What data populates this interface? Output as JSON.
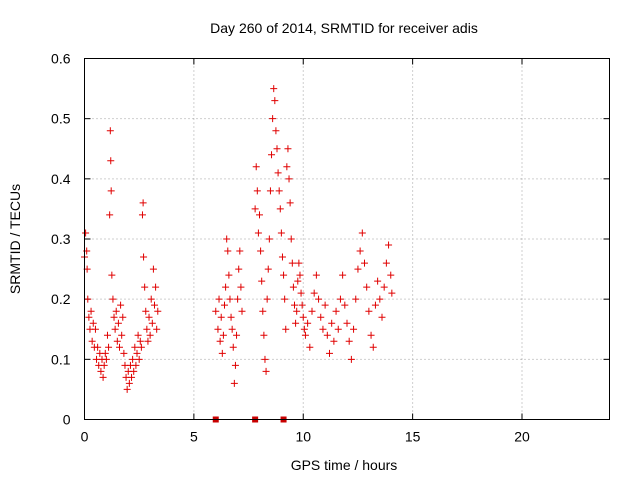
{
  "chart_data": {
    "type": "scatter",
    "title": "Day 260 of 2014, SRMTID for receiver adis",
    "xlabel": "GPS time / hours",
    "ylabel": "SRMTID / TECUs",
    "xlim": [
      0,
      24
    ],
    "ylim": [
      0,
      0.6
    ],
    "xticks": [
      0,
      5,
      10,
      15,
      20
    ],
    "yticks": [
      0,
      0.1,
      0.2,
      0.3,
      0.4,
      0.5,
      0.6
    ],
    "xtick_labels": [
      "0",
      "5",
      "10",
      "15",
      "20"
    ],
    "ytick_labels": [
      "0",
      "0.1",
      "0.2",
      "0.3",
      "0.4",
      "0.5",
      "0.6"
    ],
    "grid": true,
    "marker": "+",
    "color": "#e00000",
    "data_gap_markers_x": [
      6.0,
      7.8,
      9.1
    ],
    "series": [
      {
        "name": "SRMTID",
        "points": [
          [
            0.0,
            0.27
          ],
          [
            0.05,
            0.31
          ],
          [
            0.1,
            0.28
          ],
          [
            0.12,
            0.25
          ],
          [
            0.15,
            0.2
          ],
          [
            0.2,
            0.17
          ],
          [
            0.25,
            0.15
          ],
          [
            0.3,
            0.18
          ],
          [
            0.35,
            0.13
          ],
          [
            0.4,
            0.16
          ],
          [
            0.45,
            0.12
          ],
          [
            0.5,
            0.15
          ],
          [
            0.55,
            0.1
          ],
          [
            0.6,
            0.12
          ],
          [
            0.65,
            0.09
          ],
          [
            0.7,
            0.11
          ],
          [
            0.75,
            0.08
          ],
          [
            0.8,
            0.1
          ],
          [
            0.85,
            0.07
          ],
          [
            0.9,
            0.09
          ],
          [
            0.95,
            0.11
          ],
          [
            1.0,
            0.1
          ],
          [
            1.05,
            0.14
          ],
          [
            1.1,
            0.12
          ],
          [
            1.15,
            0.34
          ],
          [
            1.18,
            0.48
          ],
          [
            1.2,
            0.43
          ],
          [
            1.22,
            0.38
          ],
          [
            1.25,
            0.24
          ],
          [
            1.3,
            0.2
          ],
          [
            1.35,
            0.17
          ],
          [
            1.4,
            0.15
          ],
          [
            1.45,
            0.18
          ],
          [
            1.5,
            0.13
          ],
          [
            1.55,
            0.16
          ],
          [
            1.6,
            0.12
          ],
          [
            1.65,
            0.19
          ],
          [
            1.7,
            0.14
          ],
          [
            1.75,
            0.17
          ],
          [
            1.8,
            0.11
          ],
          [
            1.85,
            0.09
          ],
          [
            1.9,
            0.07
          ],
          [
            1.95,
            0.05
          ],
          [
            2.0,
            0.08
          ],
          [
            2.05,
            0.06
          ],
          [
            2.1,
            0.09
          ],
          [
            2.15,
            0.07
          ],
          [
            2.2,
            0.1
          ],
          [
            2.25,
            0.08
          ],
          [
            2.3,
            0.12
          ],
          [
            2.35,
            0.09
          ],
          [
            2.4,
            0.11
          ],
          [
            2.45,
            0.14
          ],
          [
            2.5,
            0.1
          ],
          [
            2.55,
            0.13
          ],
          [
            2.6,
            0.12
          ],
          [
            2.65,
            0.34
          ],
          [
            2.68,
            0.36
          ],
          [
            2.7,
            0.27
          ],
          [
            2.75,
            0.22
          ],
          [
            2.8,
            0.18
          ],
          [
            2.85,
            0.15
          ],
          [
            2.9,
            0.13
          ],
          [
            2.95,
            0.17
          ],
          [
            3.0,
            0.14
          ],
          [
            3.05,
            0.2
          ],
          [
            3.1,
            0.16
          ],
          [
            3.15,
            0.25
          ],
          [
            3.2,
            0.19
          ],
          [
            3.25,
            0.22
          ],
          [
            3.3,
            0.15
          ],
          [
            3.35,
            0.18
          ],
          [
            6.0,
            0.18
          ],
          [
            6.1,
            0.15
          ],
          [
            6.15,
            0.2
          ],
          [
            6.2,
            0.13
          ],
          [
            6.25,
            0.17
          ],
          [
            6.3,
            0.11
          ],
          [
            6.35,
            0.14
          ],
          [
            6.4,
            0.19
          ],
          [
            6.45,
            0.22
          ],
          [
            6.5,
            0.3
          ],
          [
            6.55,
            0.28
          ],
          [
            6.6,
            0.24
          ],
          [
            6.65,
            0.2
          ],
          [
            6.7,
            0.17
          ],
          [
            6.75,
            0.15
          ],
          [
            6.8,
            0.12
          ],
          [
            6.85,
            0.06
          ],
          [
            6.9,
            0.09
          ],
          [
            6.95,
            0.14
          ],
          [
            7.0,
            0.2
          ],
          [
            7.05,
            0.25
          ],
          [
            7.1,
            0.28
          ],
          [
            7.15,
            0.22
          ],
          [
            7.2,
            0.18
          ],
          [
            7.8,
            0.35
          ],
          [
            7.85,
            0.42
          ],
          [
            7.9,
            0.38
          ],
          [
            7.95,
            0.31
          ],
          [
            8.0,
            0.34
          ],
          [
            8.05,
            0.28
          ],
          [
            8.1,
            0.23
          ],
          [
            8.15,
            0.18
          ],
          [
            8.2,
            0.14
          ],
          [
            8.25,
            0.1
          ],
          [
            8.3,
            0.08
          ],
          [
            8.35,
            0.2
          ],
          [
            8.4,
            0.25
          ],
          [
            8.45,
            0.3
          ],
          [
            8.5,
            0.38
          ],
          [
            8.55,
            0.44
          ],
          [
            8.6,
            0.5
          ],
          [
            8.65,
            0.55
          ],
          [
            8.7,
            0.53
          ],
          [
            8.75,
            0.48
          ],
          [
            8.8,
            0.45
          ],
          [
            8.85,
            0.41
          ],
          [
            8.9,
            0.38
          ],
          [
            8.95,
            0.35
          ],
          [
            9.0,
            0.31
          ],
          [
            9.05,
            0.27
          ],
          [
            9.1,
            0.24
          ],
          [
            9.15,
            0.2
          ],
          [
            9.2,
            0.15
          ],
          [
            9.25,
            0.42
          ],
          [
            9.3,
            0.45
          ],
          [
            9.35,
            0.4
          ],
          [
            9.4,
            0.36
          ],
          [
            9.45,
            0.3
          ],
          [
            9.5,
            0.26
          ],
          [
            9.55,
            0.22
          ],
          [
            9.6,
            0.19
          ],
          [
            9.65,
            0.16
          ],
          [
            9.7,
            0.18
          ],
          [
            9.75,
            0.23
          ],
          [
            9.8,
            0.26
          ],
          [
            9.85,
            0.24
          ],
          [
            9.9,
            0.21
          ],
          [
            9.95,
            0.19
          ],
          [
            10.0,
            0.17
          ],
          [
            10.05,
            0.15
          ],
          [
            10.1,
            0.14
          ],
          [
            10.2,
            0.16
          ],
          [
            10.3,
            0.12
          ],
          [
            10.4,
            0.18
          ],
          [
            10.5,
            0.21
          ],
          [
            10.6,
            0.24
          ],
          [
            10.7,
            0.2
          ],
          [
            10.8,
            0.17
          ],
          [
            10.9,
            0.15
          ],
          [
            11.0,
            0.19
          ],
          [
            11.1,
            0.14
          ],
          [
            11.2,
            0.11
          ],
          [
            11.3,
            0.16
          ],
          [
            11.4,
            0.13
          ],
          [
            11.5,
            0.18
          ],
          [
            11.6,
            0.15
          ],
          [
            11.7,
            0.2
          ],
          [
            11.8,
            0.24
          ],
          [
            11.9,
            0.19
          ],
          [
            12.0,
            0.16
          ],
          [
            12.1,
            0.13
          ],
          [
            12.2,
            0.1
          ],
          [
            12.3,
            0.15
          ],
          [
            12.4,
            0.2
          ],
          [
            12.5,
            0.25
          ],
          [
            12.6,
            0.28
          ],
          [
            12.7,
            0.31
          ],
          [
            12.8,
            0.26
          ],
          [
            12.9,
            0.22
          ],
          [
            13.0,
            0.18
          ],
          [
            13.1,
            0.14
          ],
          [
            13.2,
            0.12
          ],
          [
            13.3,
            0.19
          ],
          [
            13.4,
            0.23
          ],
          [
            13.5,
            0.2
          ],
          [
            13.6,
            0.17
          ],
          [
            13.7,
            0.22
          ],
          [
            13.8,
            0.26
          ],
          [
            13.9,
            0.29
          ],
          [
            14.0,
            0.24
          ],
          [
            14.05,
            0.21
          ]
        ]
      }
    ]
  }
}
